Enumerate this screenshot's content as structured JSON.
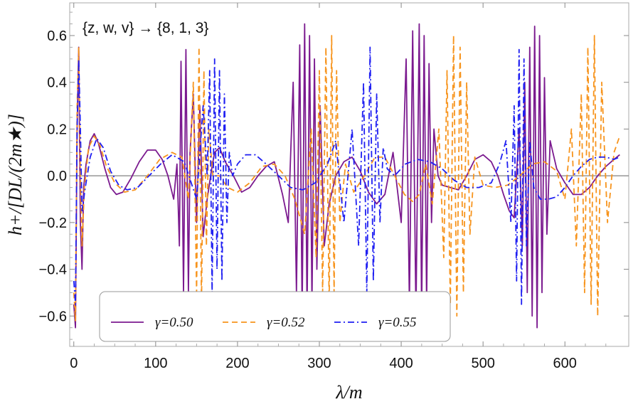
{
  "chart_data": {
    "type": "line",
    "title": "",
    "xlabel": "λ/m",
    "ylabel": "h+/[DL/(2m★)]",
    "xlim": [
      -5,
      678
    ],
    "ylim": [
      -0.73,
      0.74
    ],
    "x_ticks": [
      0,
      100,
      200,
      300,
      400,
      500,
      600
    ],
    "x_tick_labels": [
      "0",
      "100",
      "200",
      "300",
      "400",
      "500",
      "600"
    ],
    "y_ticks": [
      0.6,
      0.4,
      0.2,
      0.0,
      -0.2,
      -0.4,
      -0.6
    ],
    "y_tick_labels": [
      "0.6",
      "0.4",
      "0.2",
      "0.0",
      "−0.2",
      "−0.4",
      "−0.6"
    ],
    "annotation": "{z, w, v} → {8, 1, 3}",
    "legend_position": "bottom",
    "series": [
      {
        "name": "γ=0.50",
        "color": "#7b1a8f",
        "dash": "solid",
        "x": [
          0,
          2,
          4,
          6,
          8,
          10,
          12,
          15,
          20,
          25,
          30,
          38,
          45,
          52,
          60,
          70,
          80,
          90,
          100,
          108,
          115,
          122,
          126,
          129,
          131,
          134,
          137,
          140,
          142,
          146,
          150,
          154,
          158,
          163,
          168,
          172,
          178,
          185,
          195,
          205,
          215,
          225,
          235,
          245,
          255,
          262,
          268,
          272,
          276,
          279,
          282,
          285,
          288,
          291,
          294,
          297,
          301,
          306,
          312,
          320,
          330,
          340,
          350,
          360,
          370,
          380,
          390,
          400,
          406,
          410,
          414,
          418,
          422,
          425,
          428,
          431,
          434,
          437,
          440,
          445,
          450,
          460,
          470,
          480,
          490,
          500,
          510,
          518,
          525,
          532,
          538,
          544,
          548,
          551,
          554,
          557,
          560,
          563,
          566,
          569,
          572,
          575,
          578,
          582,
          590,
          600,
          610,
          620,
          630,
          640,
          650,
          660,
          667
        ],
        "values": [
          -0.55,
          -0.65,
          0.2,
          0.55,
          -0.2,
          -0.4,
          -0.05,
          0.05,
          0.15,
          0.18,
          0.14,
          0.03,
          -0.05,
          -0.08,
          -0.07,
          -0.01,
          0.06,
          0.11,
          0.11,
          0.07,
          0.0,
          -0.1,
          0.05,
          -0.3,
          0.49,
          -0.5,
          0.54,
          -0.5,
          0.1,
          0.35,
          -0.2,
          0.3,
          -0.26,
          -0.1,
          0.02,
          0.1,
          0.12,
          0.06,
          0.0,
          -0.07,
          -0.05,
          0.0,
          0.04,
          0.06,
          -0.08,
          -0.2,
          0.4,
          -0.5,
          0.56,
          -0.6,
          0.65,
          -0.6,
          0.6,
          -0.55,
          0.5,
          -0.4,
          0.3,
          -0.3,
          -0.12,
          0.0,
          0.06,
          0.08,
          0.02,
          -0.07,
          -0.12,
          -0.08,
          0.1,
          -0.2,
          0.5,
          -0.55,
          0.62,
          -0.6,
          0.65,
          -0.6,
          0.6,
          -0.55,
          0.48,
          -0.2,
          0.2,
          0.0,
          -0.04,
          -0.05,
          -0.06,
          0.0,
          0.07,
          0.09,
          0.06,
          0.0,
          -0.08,
          -0.15,
          -0.18,
          0.2,
          -0.3,
          0.4,
          -0.5,
          0.55,
          -0.6,
          0.64,
          -0.65,
          0.6,
          -0.5,
          0.42,
          -0.25,
          0.15,
          0.03,
          -0.03,
          -0.08,
          -0.08,
          -0.05,
          0.0,
          0.04,
          0.07,
          0.09
        ]
      },
      {
        "name": "γ=0.52",
        "color": "#f7941d",
        "dash": "8,5",
        "x": [
          0,
          2,
          4,
          6,
          8,
          10,
          13,
          18,
          25,
          32,
          40,
          50,
          62,
          75,
          90,
          105,
          120,
          132,
          140,
          146,
          150,
          153,
          156,
          159,
          162,
          165,
          170,
          178,
          188,
          200,
          215,
          230,
          245,
          258,
          270,
          282,
          290,
          296,
          300,
          304,
          308,
          312,
          315,
          318,
          321,
          325,
          332,
          342,
          355,
          368,
          380,
          392,
          404,
          414,
          422,
          430,
          438,
          446,
          452,
          456,
          460,
          464,
          468,
          472,
          476,
          480,
          484,
          490,
          500,
          515,
          530,
          545,
          560,
          575,
          590,
          600,
          608,
          614,
          620,
          624,
          628,
          632,
          636,
          640,
          645,
          652,
          660,
          667
        ],
        "values": [
          -0.5,
          -0.62,
          0.3,
          0.55,
          0.0,
          -0.3,
          -0.05,
          0.12,
          0.17,
          0.13,
          0.04,
          -0.03,
          -0.07,
          -0.06,
          0.0,
          0.07,
          0.1,
          0.08,
          -0.1,
          0.4,
          -0.5,
          0.55,
          -0.55,
          0.45,
          -0.3,
          0.2,
          0.0,
          0.0,
          -0.05,
          -0.07,
          -0.03,
          0.04,
          0.05,
          0.0,
          -0.1,
          -0.25,
          0.2,
          -0.35,
          0.45,
          -0.5,
          0.55,
          -0.55,
          0.6,
          -0.5,
          0.45,
          -0.2,
          0.05,
          -0.07,
          0.0,
          0.08,
          0.08,
          0.0,
          -0.08,
          -0.11,
          -0.08,
          0.05,
          -0.12,
          0.2,
          -0.35,
          0.45,
          -0.55,
          0.6,
          -0.6,
          0.55,
          -0.5,
          0.4,
          -0.25,
          0.08,
          -0.04,
          -0.05,
          -0.04,
          0.0,
          0.05,
          0.06,
          0.02,
          -0.1,
          0.2,
          -0.3,
          0.35,
          -0.5,
          0.55,
          -0.55,
          0.6,
          -0.6,
          0.4,
          -0.2,
          0.1,
          0.17
        ]
      },
      {
        "name": "γ=0.55",
        "color": "#1f1ff2",
        "dash": "9,4,2,4",
        "x": [
          0,
          2,
          4,
          6,
          8,
          10,
          14,
          20,
          28,
          36,
          45,
          55,
          65,
          78,
          92,
          106,
          120,
          135,
          150,
          158,
          163,
          166,
          169,
          172,
          175,
          178,
          181,
          184,
          187,
          190,
          194,
          200,
          210,
          222,
          235,
          250,
          265,
          280,
          295,
          310,
          320,
          330,
          340,
          348,
          354,
          358,
          362,
          366,
          370,
          374,
          378,
          383,
          392,
          405,
          420,
          435,
          450,
          465,
          480,
          495,
          510,
          520,
          528,
          534,
          538,
          541,
          544,
          547,
          550,
          553,
          557,
          562,
          570,
          580,
          590,
          600,
          610,
          620,
          630,
          640,
          650,
          660,
          667
        ],
        "values": [
          -0.45,
          -0.55,
          0.2,
          0.5,
          0.2,
          -0.15,
          -0.05,
          0.08,
          0.16,
          0.12,
          0.02,
          -0.04,
          -0.06,
          -0.05,
          0.0,
          0.05,
          0.09,
          0.06,
          -0.1,
          0.3,
          0.0,
          0.45,
          -0.5,
          0.5,
          -0.4,
          0.45,
          -0.45,
          0.35,
          -0.2,
          0.1,
          0.0,
          0.05,
          0.09,
          0.09,
          0.05,
          0.0,
          -0.05,
          -0.06,
          -0.03,
          0.05,
          0.15,
          -0.2,
          0.2,
          -0.3,
          0.4,
          -0.5,
          0.55,
          -0.45,
          0.35,
          -0.2,
          0.12,
          0.03,
          0.0,
          0.05,
          0.07,
          0.06,
          0.03,
          -0.02,
          -0.05,
          -0.05,
          -0.03,
          0.05,
          0.15,
          -0.2,
          0.3,
          -0.45,
          0.54,
          -0.55,
          0.5,
          -0.3,
          0.15,
          -0.05,
          -0.1,
          -0.1,
          -0.09,
          -0.05,
          0.0,
          0.04,
          0.07,
          0.08,
          0.08,
          0.07,
          0.08
        ]
      }
    ]
  }
}
